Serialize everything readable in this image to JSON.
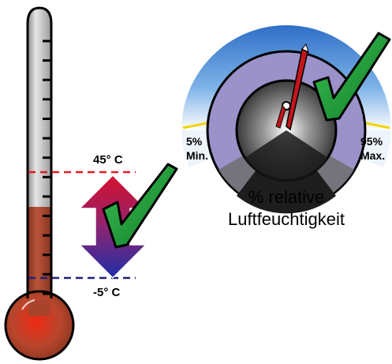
{
  "colors": {
    "mercury": "#a8432c",
    "bulb_center": "#e02818",
    "tube_glass": "#c9c9c9",
    "max_line": "#e01b24",
    "min_line": "#1f1e7a",
    "arrow_top": "#d4103a",
    "arrow_bottom": "#1f2d9e",
    "check_fill": "#1e9b3a",
    "gauge_ring": "#4b8fd8",
    "gauge_face": "#9a92c9",
    "needle": "#c4151c",
    "limit_line": "#f2d400"
  },
  "thermometer": {
    "max_label": "45° C",
    "min_label": "-5° C",
    "tick_count": 14,
    "range_icon": "double-arrow-icon",
    "ok_icon": "checkmark-icon"
  },
  "hygrometer": {
    "min_value": "5%",
    "min_text": "Min.",
    "max_value": "95%",
    "max_text": "Max.",
    "caption_line1": "% relative",
    "caption_line2": "Luftfeuchtigkeit",
    "ok_icon": "checkmark-icon"
  }
}
